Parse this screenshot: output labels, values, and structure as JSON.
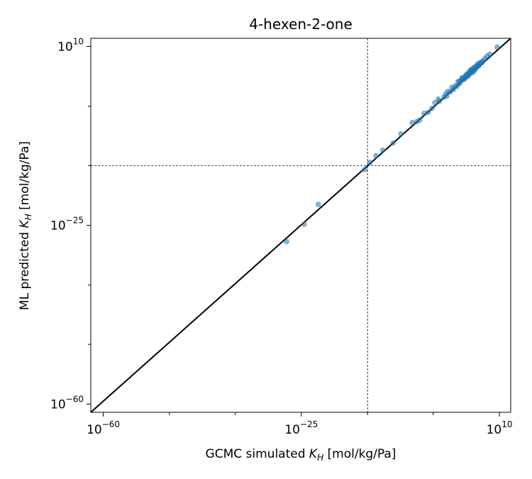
{
  "chart_data": {
    "type": "scatter",
    "title": "4-hexen-2-one",
    "xlabel": {
      "prefix": "GCMC simulated ",
      "symbol": "K",
      "subscript": "H",
      "suffix": " [mol/kg/Pa]"
    },
    "ylabel": {
      "prefix": "ML predicted ",
      "symbol": "K",
      "subscript": "H",
      "suffix": " [mol/kg/Pa]"
    },
    "x_scale": "log",
    "y_scale": "log",
    "xlim_exp": [
      -62.2,
      12.0
    ],
    "ylim_exp": [
      -61.6,
      11.6
    ],
    "major_ticks": [
      {
        "exp": -60,
        "base": "10",
        "sup": "−60"
      },
      {
        "exp": -25,
        "base": "10",
        "sup": "−25"
      },
      {
        "exp": 10,
        "base": "10",
        "sup": "10"
      }
    ],
    "minor_tick_exps": [
      -48.3,
      -36.7,
      -13.3,
      -1.7
    ],
    "reference_lines": {
      "vertical_exp": -13.3,
      "horizontal_exp": -13.3,
      "style": "dashed"
    },
    "diagonal": "y = x",
    "grid": false,
    "colors": {
      "points": "#1f77b4",
      "diagonal": "#000000",
      "reference": "#000000"
    },
    "points_log10": [
      [
        -27.6,
        -28.2
      ],
      [
        -24.5,
        -24.8
      ],
      [
        -22.0,
        -20.9
      ],
      [
        -13.8,
        -14.1
      ],
      [
        -12.9,
        -12.7
      ],
      [
        -11.8,
        -11.4
      ],
      [
        -10.6,
        -10.3
      ],
      [
        -8.8,
        -8.9
      ],
      [
        -7.4,
        -7.1
      ],
      [
        -5.4,
        -4.9
      ],
      [
        -4.6,
        -4.7
      ],
      [
        -4.1,
        -4.4
      ],
      [
        -3.3,
        -3.1
      ],
      [
        -2.6,
        -2.9
      ],
      [
        -1.4,
        -1.0
      ],
      [
        -1.9,
        -2.1
      ],
      [
        -0.6,
        -0.7
      ],
      [
        -0.8,
        -0.3
      ],
      [
        0.2,
        0.1
      ],
      [
        0.5,
        0.7
      ],
      [
        0.7,
        0.3
      ],
      [
        0.9,
        1.2
      ],
      [
        1.3,
        1.1
      ],
      [
        1.6,
        2.0
      ],
      [
        1.9,
        1.6
      ],
      [
        2.2,
        2.3
      ],
      [
        2.5,
        2.2
      ],
      [
        2.7,
        3.1
      ],
      [
        3.0,
        2.8
      ],
      [
        3.2,
        3.4
      ],
      [
        3.4,
        3.9
      ],
      [
        3.6,
        3.5
      ],
      [
        3.8,
        3.9
      ],
      [
        4.0,
        4.3
      ],
      [
        4.1,
        4.0
      ],
      [
        4.3,
        4.6
      ],
      [
        4.5,
        4.2
      ],
      [
        4.6,
        5.0
      ],
      [
        4.8,
        4.7
      ],
      [
        4.9,
        5.3
      ],
      [
        5.0,
        5.0
      ],
      [
        5.2,
        5.4
      ],
      [
        5.3,
        4.9
      ],
      [
        5.4,
        5.8
      ],
      [
        5.5,
        5.6
      ],
      [
        5.6,
        5.3
      ],
      [
        5.7,
        6.0
      ],
      [
        5.9,
        5.9
      ],
      [
        6.0,
        6.3
      ],
      [
        6.1,
        6.1
      ],
      [
        6.2,
        6.6
      ],
      [
        6.4,
        6.3
      ],
      [
        6.5,
        6.7
      ],
      [
        6.7,
        6.9
      ],
      [
        6.9,
        6.8
      ],
      [
        7.1,
        7.2
      ],
      [
        7.4,
        7.6
      ],
      [
        7.8,
        8.1
      ],
      [
        8.3,
        8.5
      ],
      [
        9.6,
        9.9
      ],
      [
        4.2,
        4.5
      ],
      [
        3.9,
        3.7
      ],
      [
        4.7,
        4.6
      ],
      [
        5.1,
        5.1
      ],
      [
        5.8,
        5.7
      ],
      [
        3.5,
        3.8
      ],
      [
        4.4,
        4.4
      ],
      [
        6.3,
        6.2
      ],
      [
        2.9,
        3.2
      ],
      [
        5.0,
        5.5
      ]
    ]
  }
}
